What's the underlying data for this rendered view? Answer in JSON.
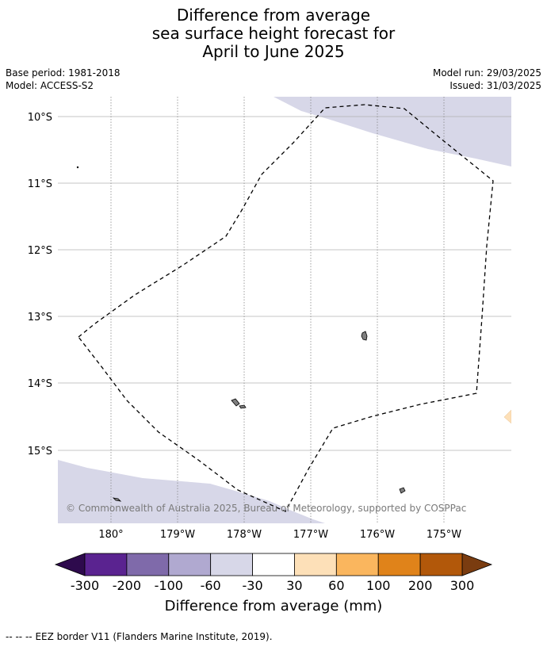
{
  "title": {
    "line1": "Difference from average",
    "line2": "sea surface height forecast for",
    "line3": "April to June 2025"
  },
  "meta": {
    "base_period": "Base period: 1981-2018",
    "model": "Model: ACCESS-S2",
    "model_run": "Model run: 29/03/2025",
    "issued": "Issued: 31/03/2025"
  },
  "map": {
    "lat_labels": [
      "10°S",
      "11°S",
      "12°S",
      "13°S",
      "14°S",
      "15°S"
    ],
    "lon_labels": [
      "180°",
      "179°W",
      "178°W",
      "177°W",
      "176°W",
      "175°W"
    ],
    "copyright": "© Commonwealth of Australia 2025, Bureau of Meteorology, supported by COSPPac",
    "colors": {
      "neg_light": "#d7d7e8",
      "pos_light": "#fde0b8",
      "land": "#7f7f7f",
      "grid": "#b0b0b0"
    }
  },
  "colorbar": {
    "title": "Difference from average (mm)",
    "tick_labels": [
      "-300",
      "-200",
      "-100",
      "-60",
      "-30",
      "30",
      "60",
      "100",
      "200",
      "300"
    ],
    "colors": [
      "#2e0a4d",
      "#5a2390",
      "#7f6aaa",
      "#b0a9d0",
      "#d7d7e8",
      "#ffffff",
      "#fde0b8",
      "#fab65e",
      "#e0831a",
      "#b2580a",
      "#7a3c10"
    ]
  },
  "footer": {
    "legend_symbol": "--  --  --",
    "legend_text": "EEZ border V11 (Flanders Marine Institute, 2019)."
  }
}
